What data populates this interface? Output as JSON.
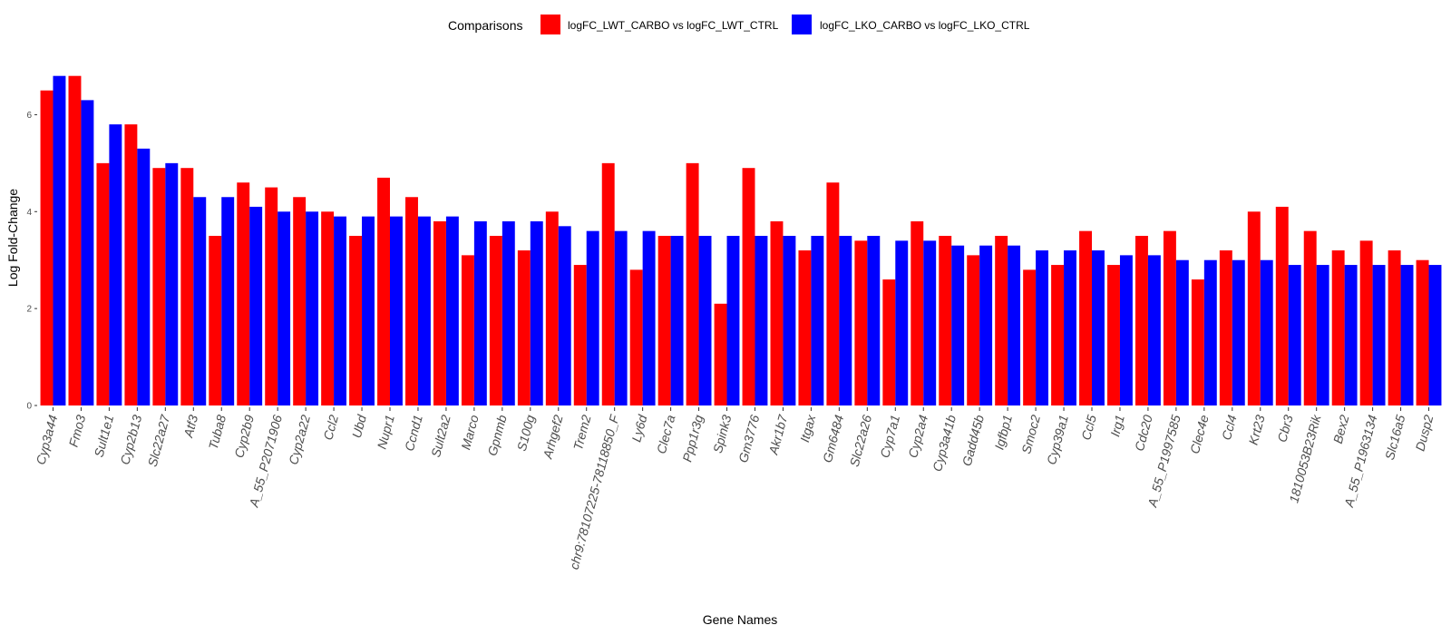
{
  "chart_data": {
    "type": "bar",
    "title": "",
    "xlabel": "Gene Names",
    "ylabel": "Log Fold-Change",
    "ylim": [
      0,
      7.0
    ],
    "yticks": [
      0,
      2,
      4,
      6
    ],
    "grid": false,
    "legend": {
      "title": "Comparisons",
      "placement": "top"
    },
    "categories": [
      "Cyp3a44",
      "Fmo3",
      "Sult1e1",
      "Cyp2b13",
      "Slc22a27",
      "Atf3",
      "Tuba8",
      "Cyp2b9",
      "A_55_P2071906",
      "Cyp2a22",
      "Ccl2",
      "Ubd",
      "Nupr1",
      "Ccnd1",
      "Sult2a2",
      "Marco",
      "Gpnmb",
      "S100g",
      "Arhgef2",
      "Trem2",
      "chr9:78107225-78118850_F",
      "Ly6d",
      "Clec7a",
      "Ppp1r3g",
      "Spink3",
      "Gm3776",
      "Akr1b7",
      "Itgax",
      "Gm6484",
      "Slc22a26",
      "Cyp7a1",
      "Cyp2a4",
      "Cyp3a41b",
      "Gadd45b",
      "Igfbp1",
      "Smoc2",
      "Cyp39a1",
      "Ccl5",
      "Irg1",
      "Cdc20",
      "A_55_P1997585",
      "Clec4e",
      "Ccl4",
      "Krt23",
      "Cbr3",
      "1810053B23Rik",
      "Bex2",
      "A_55_P1963134",
      "Slc16a5",
      "Dusp2"
    ],
    "series": [
      {
        "name": "logFC_LWT_CARBO vs logFC_LWT_CTRL",
        "color": "#ff0000",
        "values": [
          6.5,
          6.8,
          5.0,
          5.8,
          4.9,
          4.9,
          3.5,
          4.6,
          4.5,
          4.3,
          4.0,
          3.5,
          4.7,
          4.3,
          3.8,
          3.1,
          3.5,
          3.2,
          4.0,
          2.9,
          5.0,
          2.8,
          3.5,
          5.0,
          2.1,
          4.9,
          3.8,
          3.2,
          4.6,
          3.4,
          2.6,
          3.8,
          3.5,
          3.1,
          3.5,
          2.8,
          2.9,
          3.6,
          2.9,
          3.5,
          3.6,
          2.6,
          3.2,
          4.0,
          4.1,
          3.6,
          3.2,
          3.4,
          3.2,
          3.0
        ]
      },
      {
        "name": "logFC_LKO_CARBO vs logFC_LKO_CTRL",
        "color": "#0000ff",
        "values": [
          6.8,
          6.3,
          5.8,
          5.3,
          5.0,
          4.3,
          4.3,
          4.1,
          4.0,
          4.0,
          3.9,
          3.9,
          3.9,
          3.9,
          3.9,
          3.8,
          3.8,
          3.8,
          3.7,
          3.6,
          3.6,
          3.6,
          3.5,
          3.5,
          3.5,
          3.5,
          3.5,
          3.5,
          3.5,
          3.5,
          3.4,
          3.4,
          3.3,
          3.3,
          3.3,
          3.2,
          3.2,
          3.2,
          3.1,
          3.1,
          3.0,
          3.0,
          3.0,
          3.0,
          2.9,
          2.9,
          2.9,
          2.9,
          2.9,
          2.9
        ]
      }
    ]
  }
}
